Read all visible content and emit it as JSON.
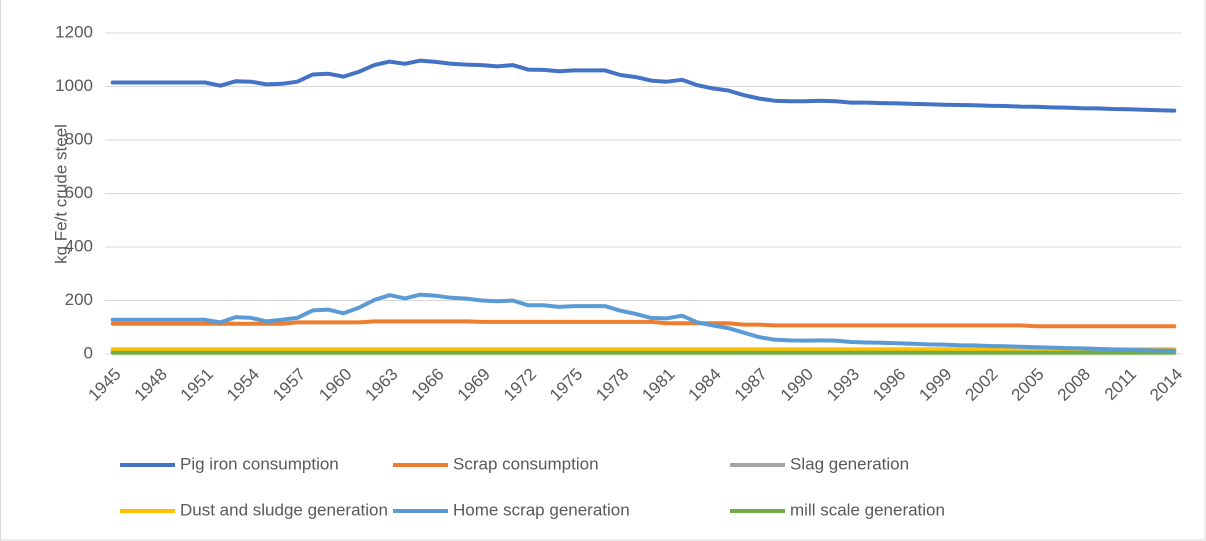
{
  "chart_data": {
    "type": "line",
    "y_label": "kg Fe/t crude steel",
    "categories": [
      "1945",
      null,
      null,
      "1948",
      null,
      null,
      "1951",
      null,
      null,
      "1954",
      null,
      null,
      "1957",
      null,
      null,
      "1960",
      null,
      null,
      "1963",
      null,
      null,
      "1966",
      null,
      null,
      "1969",
      null,
      null,
      "1972",
      null,
      null,
      "1975",
      null,
      null,
      "1978",
      null,
      null,
      "1981",
      null,
      null,
      "1984",
      null,
      null,
      "1987",
      null,
      null,
      "1990",
      null,
      null,
      "1993",
      null,
      null,
      "1996",
      null,
      null,
      "1999",
      null,
      null,
      "2002",
      null,
      null,
      "2005",
      null,
      null,
      "2008",
      null,
      null,
      "2011",
      null,
      null,
      "2014"
    ],
    "ylim": [
      0,
      1200
    ],
    "yticks": [
      0,
      200,
      400,
      600,
      800,
      1000,
      1200
    ],
    "grid": true,
    "legend": "bottom",
    "series": [
      {
        "name": "Pig iron consumption",
        "color": "#4472c4",
        "values": [
          1015,
          1015,
          1015,
          1015,
          1015,
          1015,
          1015,
          1003,
          1020,
          1018,
          1008,
          1010,
          1018,
          1045,
          1048,
          1037,
          1055,
          1080,
          1093,
          1085,
          1097,
          1092,
          1085,
          1082,
          1080,
          1075,
          1080,
          1063,
          1062,
          1057,
          1060,
          1060,
          1060,
          1043,
          1035,
          1022,
          1018,
          1025,
          1005,
          993,
          985,
          968,
          955,
          947,
          945,
          945,
          947,
          945,
          940,
          940,
          938,
          937,
          935,
          934,
          932,
          931,
          930,
          928,
          927,
          925,
          924,
          922,
          921,
          919,
          918,
          916,
          915,
          913,
          911,
          910
        ]
      },
      {
        "name": "Scrap consumption",
        "color": "#ed7d31",
        "values": [
          113,
          113,
          113,
          113,
          113,
          113,
          113,
          113,
          113,
          113,
          113,
          113,
          118,
          118,
          118,
          118,
          118,
          122,
          122,
          122,
          122,
          122,
          122,
          122,
          120,
          120,
          120,
          120,
          120,
          120,
          120,
          120,
          120,
          120,
          120,
          120,
          115,
          115,
          115,
          115,
          115,
          110,
          110,
          107,
          107,
          107,
          107,
          107,
          107,
          107,
          107,
          107,
          107,
          107,
          107,
          107,
          107,
          107,
          107,
          107,
          104,
          104,
          104,
          104,
          104,
          104,
          104,
          104,
          104,
          104
        ]
      },
      {
        "name": "Slag generation",
        "color": "#a5a5a5",
        "values": [
          15,
          15,
          15,
          15,
          15,
          15,
          15,
          15,
          15,
          15,
          15,
          15,
          15,
          15,
          15,
          15,
          15,
          15,
          15,
          15,
          15,
          15,
          15,
          15,
          15,
          15,
          15,
          15,
          15,
          15,
          15,
          15,
          15,
          15,
          15,
          15,
          15,
          15,
          15,
          15,
          15,
          15,
          15,
          15,
          15,
          15,
          15,
          15,
          15,
          15,
          15,
          15,
          15,
          15,
          15,
          15,
          15,
          15,
          15,
          15,
          15,
          15,
          15,
          15,
          15,
          15,
          15,
          15,
          15,
          15
        ]
      },
      {
        "name": "Dust and sludge generation",
        "color": "#ffc000",
        "values": [
          18,
          18,
          18,
          18,
          18,
          18,
          18,
          18,
          18,
          18,
          18,
          18,
          18,
          18,
          18,
          18,
          18,
          18,
          18,
          18,
          18,
          18,
          18,
          18,
          18,
          18,
          18,
          18,
          18,
          18,
          18,
          18,
          18,
          18,
          18,
          18,
          18,
          18,
          18,
          18,
          18,
          18,
          18,
          18,
          18,
          18,
          18,
          18,
          18,
          18,
          18,
          18,
          18,
          18,
          18,
          18,
          18,
          18,
          18,
          18,
          18,
          18,
          18,
          18,
          18,
          18,
          18,
          18,
          18,
          18
        ]
      },
      {
        "name": "Home scrap generation",
        "color": "#5b9bd5",
        "values": [
          128,
          128,
          128,
          128,
          128,
          128,
          128,
          118,
          138,
          135,
          122,
          128,
          135,
          163,
          166,
          152,
          173,
          202,
          220,
          208,
          222,
          218,
          210,
          207,
          200,
          197,
          200,
          182,
          182,
          176,
          179,
          179,
          179,
          162,
          150,
          135,
          133,
          143,
          118,
          107,
          97,
          80,
          63,
          54,
          51,
          50,
          51,
          50,
          45,
          43,
          42,
          40,
          38,
          36,
          35,
          33,
          32,
          30,
          29,
          27,
          25,
          24,
          22,
          21,
          19,
          17,
          15,
          14,
          13,
          12
        ]
      },
      {
        "name": "mill scale generation",
        "color": "#70ad47",
        "values": [
          5,
          5,
          5,
          5,
          5,
          5,
          5,
          5,
          5,
          5,
          5,
          5,
          5,
          5,
          5,
          5,
          5,
          5,
          5,
          5,
          5,
          5,
          5,
          5,
          5,
          5,
          5,
          5,
          5,
          5,
          5,
          5,
          5,
          5,
          5,
          5,
          5,
          5,
          5,
          5,
          5,
          5,
          5,
          5,
          5,
          5,
          5,
          5,
          5,
          5,
          5,
          5,
          5,
          5,
          5,
          5,
          5,
          5,
          5,
          5,
          5,
          5,
          5,
          5,
          5,
          5,
          5,
          5,
          5,
          5
        ]
      }
    ]
  }
}
